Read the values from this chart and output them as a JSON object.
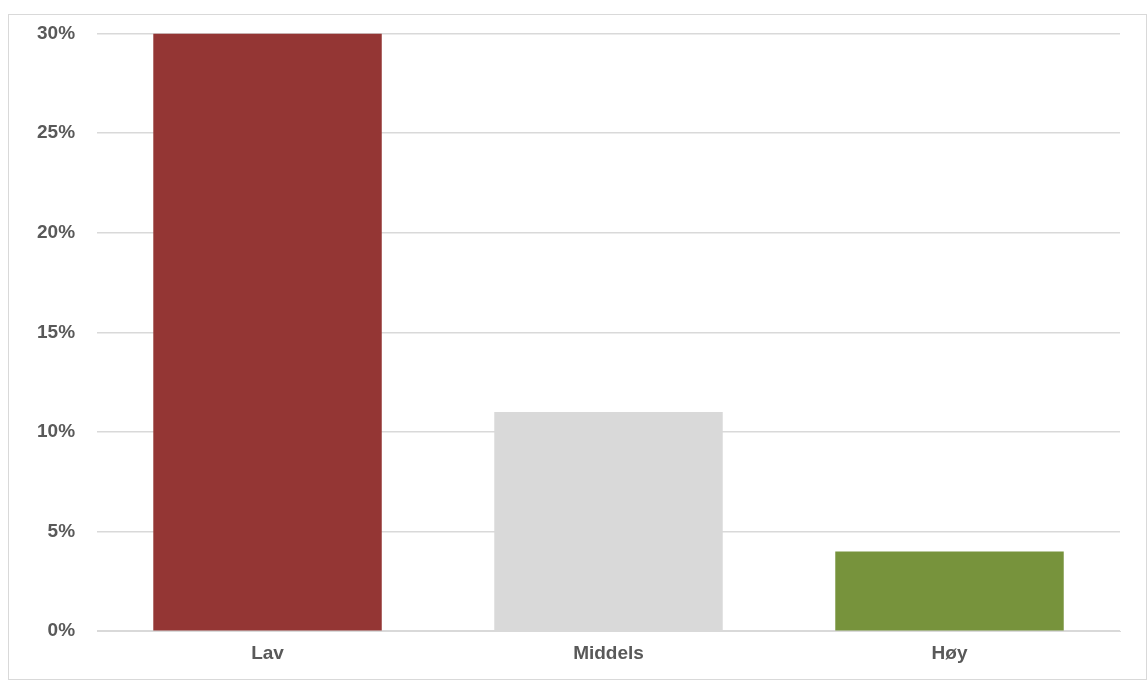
{
  "chart_data": {
    "type": "bar",
    "categories": [
      "Lav",
      "Middels",
      "Høy"
    ],
    "values": [
      30,
      11,
      4
    ],
    "colors": [
      "#943634",
      "#d9d9d9",
      "#77933c"
    ],
    "ylim": [
      0,
      30
    ],
    "yticks": [
      {
        "value": 0,
        "label": "0%"
      },
      {
        "value": 5,
        "label": "5%"
      },
      {
        "value": 10,
        "label": "10%"
      },
      {
        "value": 15,
        "label": "15%"
      },
      {
        "value": 20,
        "label": "20%"
      },
      {
        "value": 25,
        "label": "25%"
      },
      {
        "value": 30,
        "label": "30%"
      }
    ],
    "grid": "y",
    "legend": false
  }
}
